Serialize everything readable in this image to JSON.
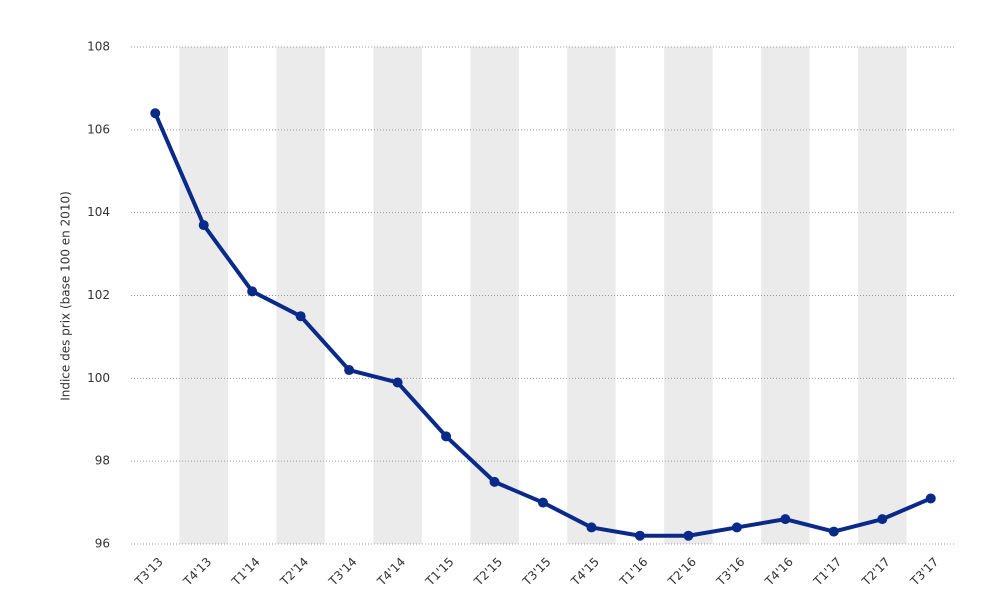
{
  "chart_data": {
    "type": "line",
    "y_label": "Indice des prix (base 100 en 2010)",
    "categories": [
      "T3'13",
      "T4'13",
      "T1'14",
      "T2'14",
      "T3'14",
      "T4'14",
      "T1'15",
      "T2'15",
      "T3'15",
      "T4'15",
      "T1'16",
      "T2'16",
      "T3'16",
      "T4'16",
      "T1'17",
      "T2'17",
      "T3'17"
    ],
    "values": [
      106.4,
      103.7,
      102.1,
      101.5,
      100.2,
      99.9,
      98.6,
      97.5,
      97.0,
      96.4,
      96.2,
      96.2,
      96.4,
      96.6,
      96.3,
      96.6,
      97.1
    ],
    "color": "#0a2a8a",
    "ylim": [
      96,
      108
    ],
    "yticks": [
      96,
      98,
      100,
      102,
      104,
      106,
      108
    ],
    "grid": true
  }
}
